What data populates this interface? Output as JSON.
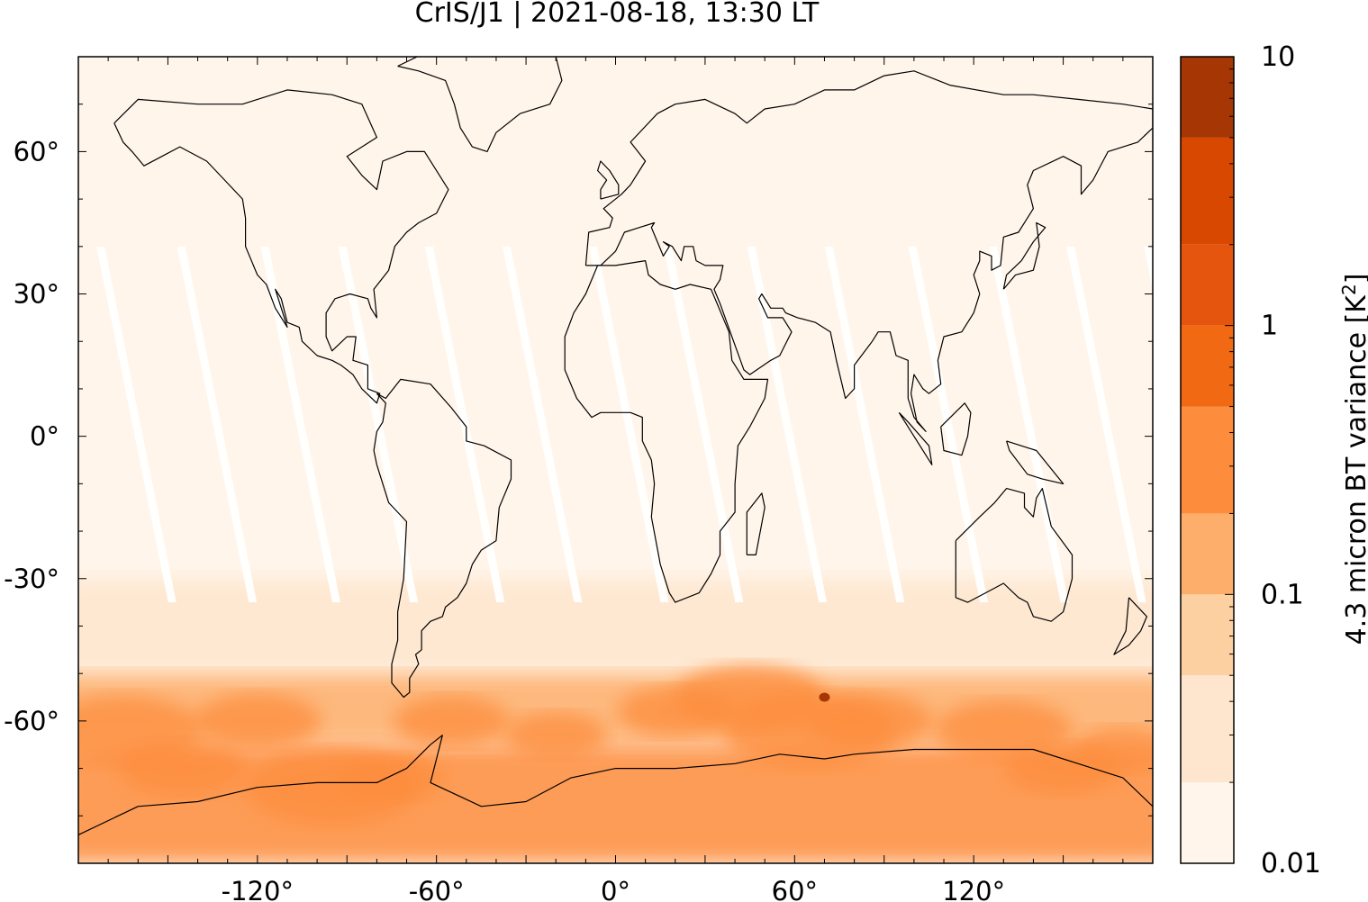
{
  "chart_data": {
    "type": "heatmap",
    "title": "CrIS/J1 | 2021-08-18, 13:30 LT",
    "projection": "equirectangular, longitude -180 to 180, latitude -90 to 80",
    "xlim": [
      -180,
      180
    ],
    "ylim": [
      -90,
      80
    ],
    "x_ticks": [
      -120,
      -60,
      0,
      60,
      120
    ],
    "x_tick_labels": [
      "-120°",
      "-60°",
      "0°",
      "60°",
      "120°"
    ],
    "y_ticks": [
      60,
      30,
      0,
      -30,
      -60
    ],
    "y_tick_labels": [
      "60°",
      "30°",
      "0°",
      "-30°",
      "-60°"
    ],
    "grid": false,
    "colorbar": {
      "label": "4.3 micron BT variance [K",
      "label_superscript": "2",
      "label_suffix": "]",
      "scale": "log",
      "range": [
        0.01,
        10
      ],
      "tick_labels": [
        "10",
        "1",
        "0.1",
        "0.01"
      ],
      "levels": [
        0.01,
        0.02,
        0.05,
        0.1,
        0.2,
        0.5,
        1,
        2,
        5,
        10
      ],
      "colors": [
        "#fff5eb",
        "#fee6ce",
        "#fdd0a2",
        "#fdae6b",
        "#fd8d3c",
        "#f16913",
        "#e6550d",
        "#d94801",
        "#a63603",
        "#7f2704"
      ]
    },
    "regions": [
      {
        "area": "tropics and mid-latitudes (80°N–30°S)",
        "variance_K2": 0.01
      },
      {
        "area": "southern mid-latitudes (30°S–50°S)",
        "variance_K2": 0.03
      },
      {
        "area": "southern ocean (50°S–65°S)",
        "variance_K2": 0.1
      },
      {
        "area": "antarctic coast (65°S–75°S)",
        "variance_K2": 0.2
      },
      {
        "area": "hotspot near 70°E, 55°S",
        "variance_K2": 5
      }
    ],
    "colors": {
      "background": "#fff5eb",
      "coastline": "#000000",
      "swath_gap": "#ffffff"
    }
  }
}
